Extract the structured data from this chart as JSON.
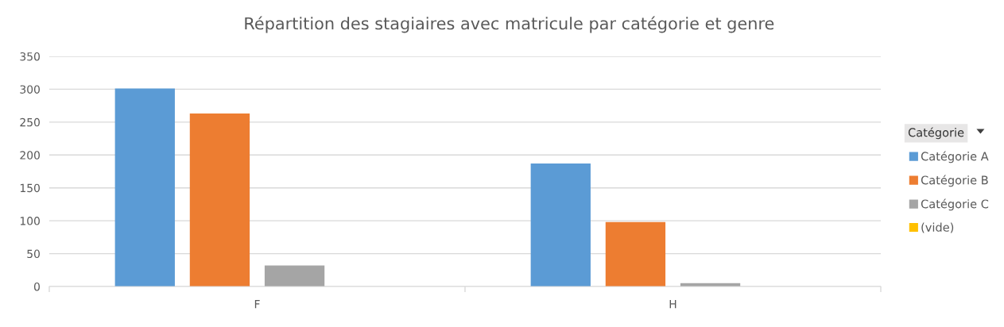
{
  "chart_data": {
    "type": "bar",
    "title": "Répartition des stagiaires avec matricule par catégorie et genre",
    "categories": [
      "F",
      "H"
    ],
    "series": [
      {
        "name": "Catégorie A",
        "color": "#5b9bd5",
        "values": [
          301,
          187
        ]
      },
      {
        "name": "Catégorie B",
        "color": "#ed7d31",
        "values": [
          263,
          98
        ]
      },
      {
        "name": "Catégorie C",
        "color": "#a5a5a5",
        "values": [
          32,
          5
        ]
      },
      {
        "name": "(vide)",
        "color": "#ffc000",
        "values": [
          null,
          null
        ]
      }
    ],
    "legend_title": "Catégorie",
    "legend": "right",
    "ylim": [
      0,
      350
    ],
    "yticks": [
      0,
      50,
      100,
      150,
      200,
      250,
      300,
      350
    ],
    "grid": "y"
  }
}
